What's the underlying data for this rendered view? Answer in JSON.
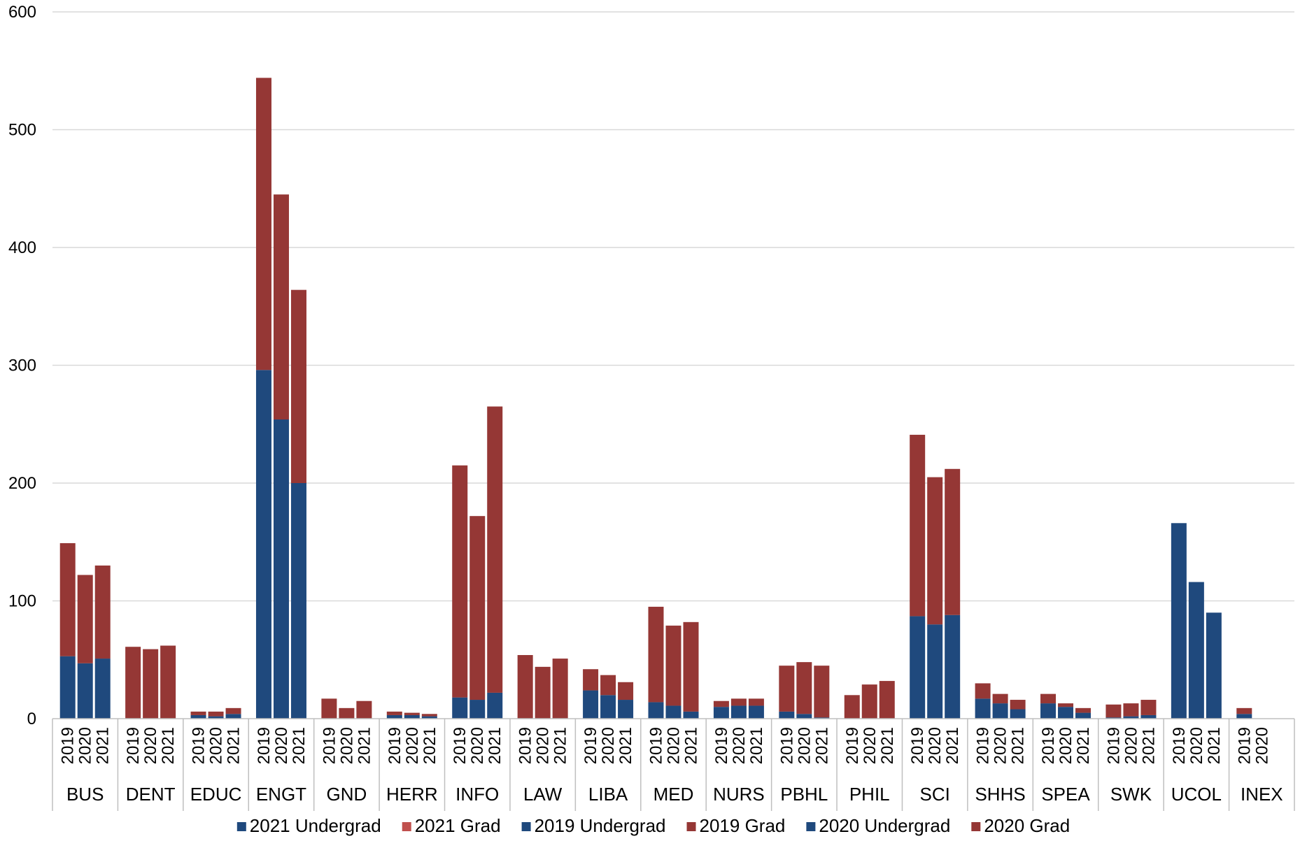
{
  "chart_data": {
    "type": "bar",
    "stacked": true,
    "title": "",
    "xlabel": "",
    "ylabel": "",
    "ylim": [
      0,
      600
    ],
    "yticks": [
      0,
      100,
      200,
      300,
      400,
      500,
      600
    ],
    "grid": true,
    "legend_position": "bottom",
    "colors": {
      "undergrad": "#1f497d",
      "grad": "#953735",
      "grad_2021_legend": "#c0504d"
    },
    "legend": [
      {
        "name": "2021 Undergrad",
        "color": "#1f497d"
      },
      {
        "name": "2021 Grad",
        "color": "#c0504d"
      },
      {
        "name": "2019 Undergrad",
        "color": "#1f497d"
      },
      {
        "name": "2019 Grad",
        "color": "#953735"
      },
      {
        "name": "2020 Undergrad",
        "color": "#1f497d"
      },
      {
        "name": "2020 Grad",
        "color": "#953735"
      }
    ],
    "groups": [
      {
        "label": "BUS",
        "bars": [
          {
            "year": "2019",
            "undergrad": 53,
            "grad": 96
          },
          {
            "year": "2020",
            "undergrad": 47,
            "grad": 75
          },
          {
            "year": "2021",
            "undergrad": 51,
            "grad": 79
          }
        ]
      },
      {
        "label": "DENT",
        "bars": [
          {
            "year": "2019",
            "undergrad": 0,
            "grad": 61
          },
          {
            "year": "2020",
            "undergrad": 0,
            "grad": 59
          },
          {
            "year": "2021",
            "undergrad": 0,
            "grad": 62
          }
        ]
      },
      {
        "label": "EDUC",
        "bars": [
          {
            "year": "2019",
            "undergrad": 3,
            "grad": 3
          },
          {
            "year": "2020",
            "undergrad": 2,
            "grad": 4
          },
          {
            "year": "2021",
            "undergrad": 4,
            "grad": 5
          }
        ]
      },
      {
        "label": "ENGT",
        "bars": [
          {
            "year": "2019",
            "undergrad": 296,
            "grad": 248
          },
          {
            "year": "2020",
            "undergrad": 254,
            "grad": 191
          },
          {
            "year": "2021",
            "undergrad": 200,
            "grad": 164
          }
        ]
      },
      {
        "label": "GND",
        "bars": [
          {
            "year": "2019",
            "undergrad": 0,
            "grad": 17
          },
          {
            "year": "2020",
            "undergrad": 0,
            "grad": 9
          },
          {
            "year": "2021",
            "undergrad": 0,
            "grad": 15
          }
        ]
      },
      {
        "label": "HERR",
        "bars": [
          {
            "year": "2019",
            "undergrad": 3,
            "grad": 3
          },
          {
            "year": "2020",
            "undergrad": 3,
            "grad": 2
          },
          {
            "year": "2021",
            "undergrad": 2,
            "grad": 2
          }
        ]
      },
      {
        "label": "INFO",
        "bars": [
          {
            "year": "2019",
            "undergrad": 18,
            "grad": 197
          },
          {
            "year": "2020",
            "undergrad": 16,
            "grad": 156
          },
          {
            "year": "2021",
            "undergrad": 22,
            "grad": 243
          }
        ]
      },
      {
        "label": "LAW",
        "bars": [
          {
            "year": "2019",
            "undergrad": 0,
            "grad": 54
          },
          {
            "year": "2020",
            "undergrad": 0,
            "grad": 44
          },
          {
            "year": "2021",
            "undergrad": 0,
            "grad": 51
          }
        ]
      },
      {
        "label": "LIBA",
        "bars": [
          {
            "year": "2019",
            "undergrad": 24,
            "grad": 18
          },
          {
            "year": "2020",
            "undergrad": 20,
            "grad": 17
          },
          {
            "year": "2021",
            "undergrad": 16,
            "grad": 15
          }
        ]
      },
      {
        "label": "MED",
        "bars": [
          {
            "year": "2019",
            "undergrad": 14,
            "grad": 81
          },
          {
            "year": "2020",
            "undergrad": 11,
            "grad": 68
          },
          {
            "year": "2021",
            "undergrad": 6,
            "grad": 76
          }
        ]
      },
      {
        "label": "NURS",
        "bars": [
          {
            "year": "2019",
            "undergrad": 10,
            "grad": 5
          },
          {
            "year": "2020",
            "undergrad": 11,
            "grad": 6
          },
          {
            "year": "2021",
            "undergrad": 11,
            "grad": 6
          }
        ]
      },
      {
        "label": "PBHL",
        "bars": [
          {
            "year": "2019",
            "undergrad": 6,
            "grad": 39
          },
          {
            "year": "2020",
            "undergrad": 4,
            "grad": 44
          },
          {
            "year": "2021",
            "undergrad": 1,
            "grad": 44
          }
        ]
      },
      {
        "label": "PHIL",
        "bars": [
          {
            "year": "2019",
            "undergrad": 0,
            "grad": 20
          },
          {
            "year": "2020",
            "undergrad": 0,
            "grad": 29
          },
          {
            "year": "2021",
            "undergrad": 0,
            "grad": 32
          }
        ]
      },
      {
        "label": "SCI",
        "bars": [
          {
            "year": "2019",
            "undergrad": 87,
            "grad": 154
          },
          {
            "year": "2020",
            "undergrad": 80,
            "grad": 125
          },
          {
            "year": "2021",
            "undergrad": 88,
            "grad": 124
          }
        ]
      },
      {
        "label": "SHHS",
        "bars": [
          {
            "year": "2019",
            "undergrad": 17,
            "grad": 13
          },
          {
            "year": "2020",
            "undergrad": 13,
            "grad": 8
          },
          {
            "year": "2021",
            "undergrad": 8,
            "grad": 8
          }
        ]
      },
      {
        "label": "SPEA",
        "bars": [
          {
            "year": "2019",
            "undergrad": 13,
            "grad": 8
          },
          {
            "year": "2020",
            "undergrad": 10,
            "grad": 3
          },
          {
            "year": "2021",
            "undergrad": 5,
            "grad": 4
          }
        ]
      },
      {
        "label": "SWK",
        "bars": [
          {
            "year": "2019",
            "undergrad": 1,
            "grad": 11
          },
          {
            "year": "2020",
            "undergrad": 2,
            "grad": 11
          },
          {
            "year": "2021",
            "undergrad": 3,
            "grad": 13
          }
        ]
      },
      {
        "label": "UCOL",
        "bars": [
          {
            "year": "2019",
            "undergrad": 166,
            "grad": 0
          },
          {
            "year": "2020",
            "undergrad": 116,
            "grad": 0
          },
          {
            "year": "2021",
            "undergrad": 90,
            "grad": 0
          }
        ]
      },
      {
        "label": "INEX",
        "bars": [
          {
            "year": "2019",
            "undergrad": 4,
            "grad": 5
          },
          {
            "year": "2020",
            "undergrad": 0,
            "grad": 0
          }
        ]
      }
    ]
  }
}
